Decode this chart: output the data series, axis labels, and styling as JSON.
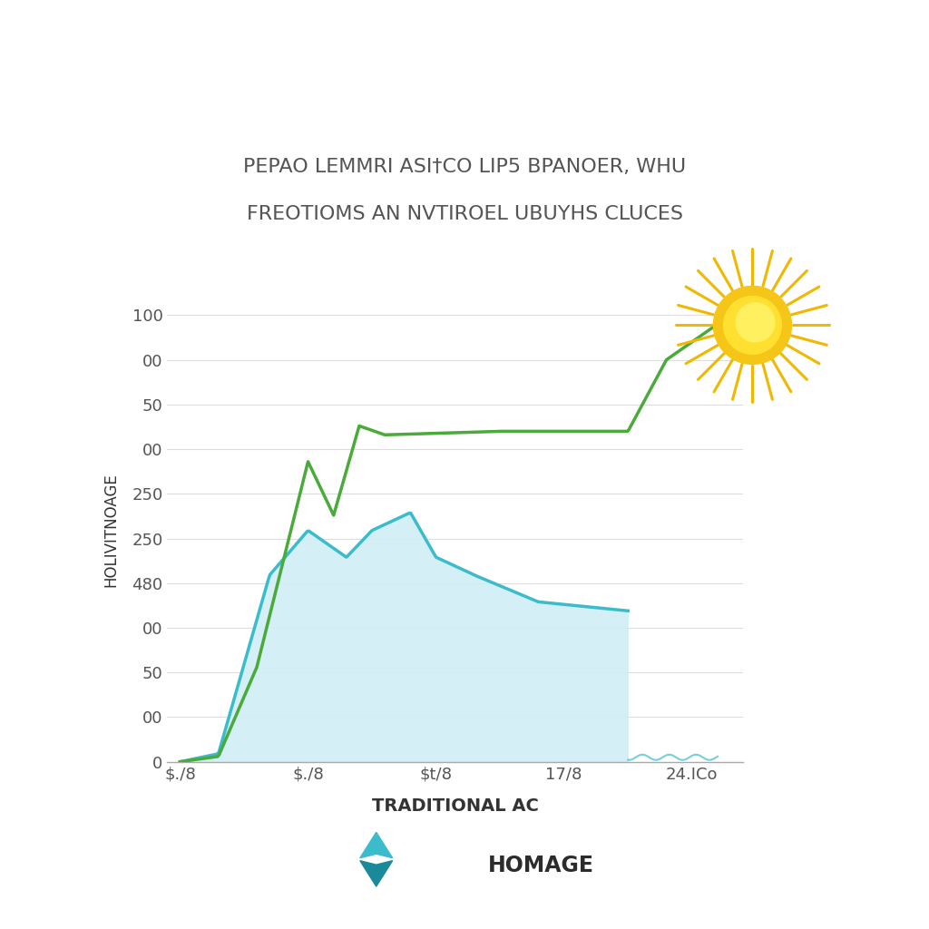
{
  "title_line1": "PEPAO LEMMRI ASI†CO LIP5 BPANOER, WHU",
  "title_line2": "FREOTIOMS AN NVTIROEL UBUYHS CLUCES",
  "xlabel": "TRADITIONAL AC",
  "ylabel": "HOLIVITNOAGE",
  "ytick_positions": [
    0,
    50,
    100,
    150,
    200,
    250,
    300,
    350,
    400,
    450,
    500
  ],
  "ytick_labels": [
    "0",
    "00",
    "50",
    "00",
    "480",
    "250",
    "250",
    "00",
    "50",
    "00",
    "100"
  ],
  "xtick_labels": [
    "$./8",
    "$./8",
    "$t/8",
    "17/8",
    "24.ICo"
  ],
  "bg_color": "#ffffff",
  "grid_color": "#dddddd",
  "line_green_color": "#4aaa3a",
  "line_blue_color": "#3bbccc",
  "fill_color": "#d0eef5",
  "homage_text": "HOMAGE",
  "homage_color": "#2c2c2c",
  "title_color": "#555555"
}
